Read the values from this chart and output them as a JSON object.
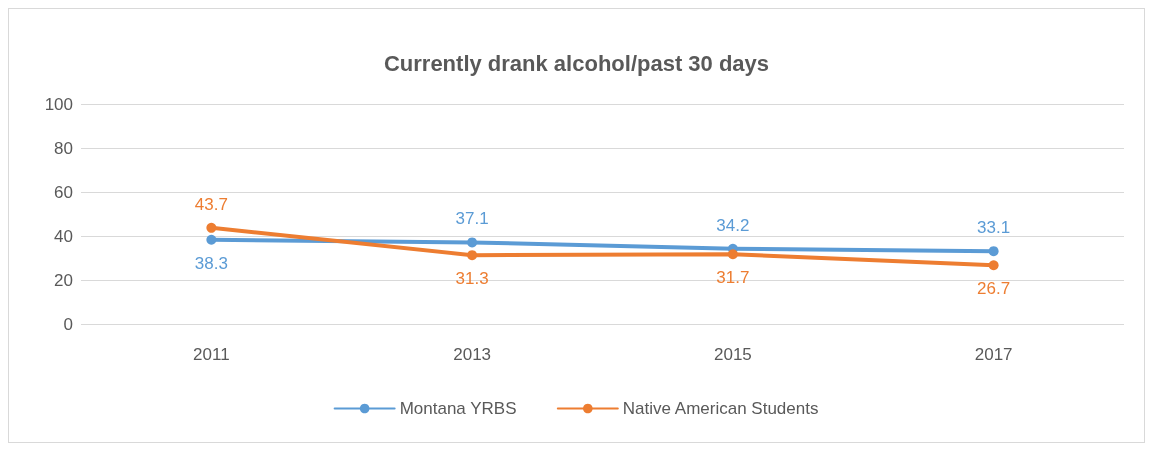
{
  "chart_data": {
    "type": "line",
    "title": "Currently drank alcohol/past 30 days",
    "categories": [
      "2011",
      "2013",
      "2015",
      "2017"
    ],
    "series": [
      {
        "name": "Montana YRBS",
        "color": "#5b9bd5",
        "values": [
          38.3,
          37.1,
          34.2,
          33.1
        ]
      },
      {
        "name": "Native American Students",
        "color": "#ed7d31",
        "values": [
          43.7,
          31.3,
          31.7,
          26.7
        ]
      }
    ],
    "ylim": [
      0,
      100
    ],
    "yticks": [
      0,
      20,
      40,
      60,
      80,
      100
    ],
    "grid": "y",
    "legend": "bottom",
    "marker": "circle",
    "line_style": "solid",
    "data_labels": true
  }
}
